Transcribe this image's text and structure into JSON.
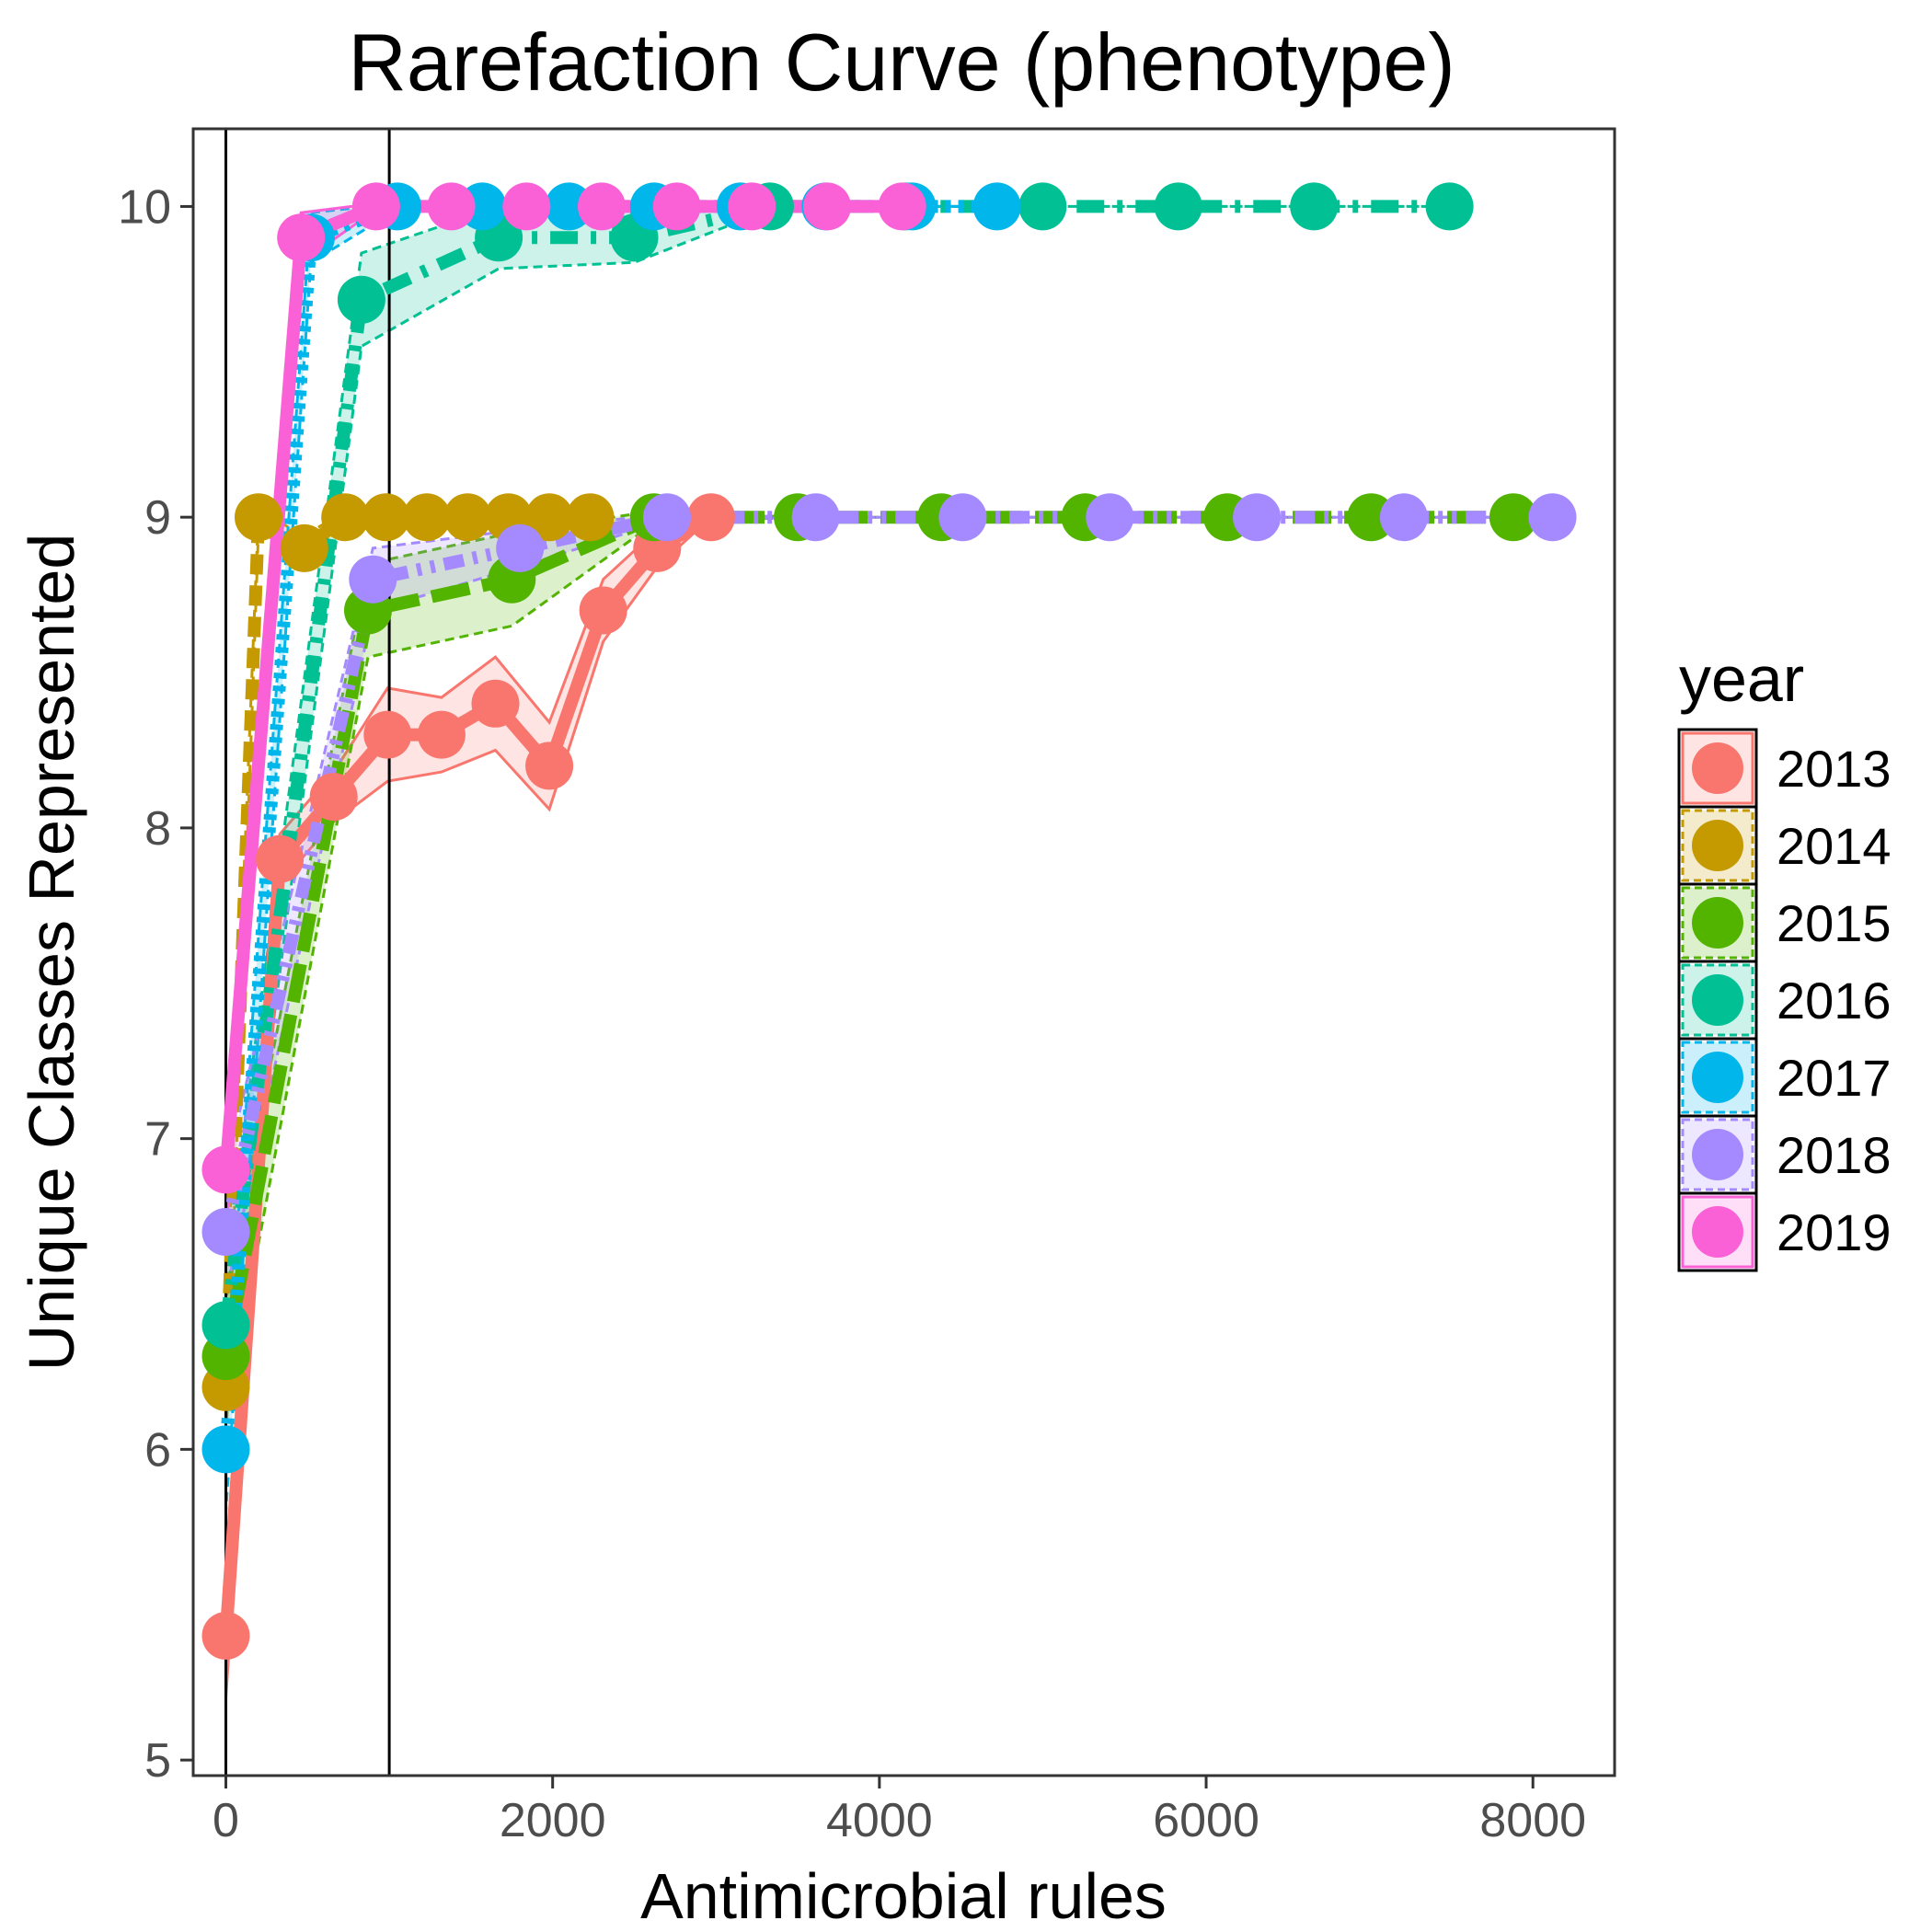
{
  "chart_data": {
    "type": "line",
    "title": "Rarefaction Curve (phenotype)",
    "xlabel": "Antimicrobial rules",
    "ylabel": "Unique Classes Represented",
    "xlim": [
      -200,
      8500
    ],
    "ylim": [
      4.95,
      10.25
    ],
    "x_ticks": [
      0,
      2000,
      4000,
      6000,
      8000
    ],
    "y_ticks": [
      5,
      6,
      7,
      8,
      9,
      10
    ],
    "vertical_lines": [
      0,
      1000
    ],
    "grid": false,
    "legend": {
      "title": "year",
      "position": "right"
    },
    "series": [
      {
        "name": "2013",
        "color": "#F8766D",
        "dash": "",
        "x": [
          0,
          330,
          660,
          990,
          1320,
          1650,
          1980,
          2310,
          2640,
          2970
        ],
        "y": [
          5.4,
          7.9,
          8.1,
          8.3,
          8.3,
          8.4,
          8.2,
          8.7,
          8.9,
          9.0
        ],
        "lower": [
          5.2,
          7.82,
          8.02,
          8.15,
          8.18,
          8.25,
          8.06,
          8.6,
          8.84,
          9.0
        ],
        "upper": [
          5.6,
          7.98,
          8.18,
          8.45,
          8.42,
          8.55,
          8.34,
          8.8,
          8.96,
          9.0
        ]
      },
      {
        "name": "2014",
        "color": "#C49A00",
        "dash": "22,12",
        "x": [
          0,
          200,
          480,
          730,
          980,
          1230,
          1480,
          1730,
          1980,
          2230
        ],
        "y": [
          6.2,
          9.0,
          8.9,
          9.0,
          9.0,
          9.0,
          9.0,
          9.0,
          9.0,
          9.0
        ],
        "lower": [
          6.0,
          8.96,
          8.86,
          8.98,
          9.0,
          9.0,
          9.0,
          9.0,
          9.0,
          9.0
        ],
        "upper": [
          6.4,
          9.02,
          8.94,
          9.02,
          9.0,
          9.0,
          9.0,
          9.0,
          9.0,
          9.0
        ]
      },
      {
        "name": "2015",
        "color": "#53B400",
        "dash": "42,14",
        "x": [
          0,
          870,
          1750,
          2620,
          3500,
          4380,
          5260,
          6130,
          7010,
          7880
        ],
        "y": [
          6.3,
          8.7,
          8.8,
          9.0,
          9.0,
          9.0,
          9.0,
          9.0,
          9.0,
          9.0
        ],
        "lower": [
          6.1,
          8.55,
          8.65,
          8.98,
          9.0,
          9.0,
          9.0,
          9.0,
          9.0,
          9.0
        ],
        "upper": [
          6.5,
          8.85,
          8.95,
          9.02,
          9.0,
          9.0,
          9.0,
          9.0,
          9.0,
          9.0
        ]
      },
      {
        "name": "2016",
        "color": "#00C094",
        "dash": "30,14,6,14",
        "x": [
          0,
          830,
          1670,
          2500,
          3330,
          4160,
          5000,
          5830,
          6660,
          7490
        ],
        "y": [
          6.4,
          9.7,
          9.9,
          9.9,
          10.0,
          10.0,
          10.0,
          10.0,
          10.0,
          10.0
        ],
        "lower": [
          6.2,
          9.55,
          9.8,
          9.82,
          9.99,
          10.0,
          10.0,
          10.0,
          10.0,
          10.0
        ],
        "upper": [
          6.6,
          9.85,
          10.0,
          9.98,
          10.01,
          10.0,
          10.0,
          10.0,
          10.0,
          10.0
        ]
      },
      {
        "name": "2017",
        "color": "#00B6EB",
        "dash": "6,8",
        "x": [
          0,
          520,
          1050,
          1570,
          2100,
          2620,
          3150,
          3670,
          4200,
          4720
        ],
        "y": [
          6.0,
          9.9,
          10.0,
          10.0,
          10.0,
          10.0,
          10.0,
          10.0,
          10.0,
          10.0
        ],
        "lower": [
          5.8,
          9.82,
          9.99,
          10.0,
          10.0,
          10.0,
          10.0,
          10.0,
          10.0,
          10.0
        ],
        "upper": [
          6.2,
          9.98,
          10.01,
          10.0,
          10.0,
          10.0,
          10.0,
          10.0,
          10.0,
          10.0
        ]
      },
      {
        "name": "2018",
        "color": "#A58AFF",
        "dash": "22,10,5,10,5,10",
        "x": [
          0,
          900,
          1800,
          2700,
          3610,
          4510,
          5410,
          6310,
          7210,
          8120
        ],
        "y": [
          6.7,
          8.8,
          8.9,
          9.0,
          9.0,
          9.0,
          9.0,
          9.0,
          9.0,
          9.0
        ],
        "lower": [
          6.5,
          8.7,
          8.84,
          8.99,
          9.0,
          9.0,
          9.0,
          9.0,
          9.0,
          9.0
        ],
        "upper": [
          6.9,
          8.9,
          8.96,
          9.01,
          9.0,
          9.0,
          9.0,
          9.0,
          9.0,
          9.0
        ]
      },
      {
        "name": "2019",
        "color": "#FB61D7",
        "dash": "",
        "x": [
          0,
          460,
          920,
          1380,
          1840,
          2300,
          2760,
          3220,
          3680,
          4140
        ],
        "y": [
          6.9,
          9.9,
          10.0,
          10.0,
          10.0,
          10.0,
          10.0,
          10.0,
          10.0,
          10.0
        ],
        "lower": [
          6.7,
          9.82,
          9.99,
          10.0,
          10.0,
          10.0,
          10.0,
          10.0,
          10.0,
          10.0
        ],
        "upper": [
          7.1,
          9.98,
          10.01,
          10.0,
          10.0,
          10.0,
          10.0,
          10.0,
          10.0,
          10.0
        ]
      }
    ]
  }
}
